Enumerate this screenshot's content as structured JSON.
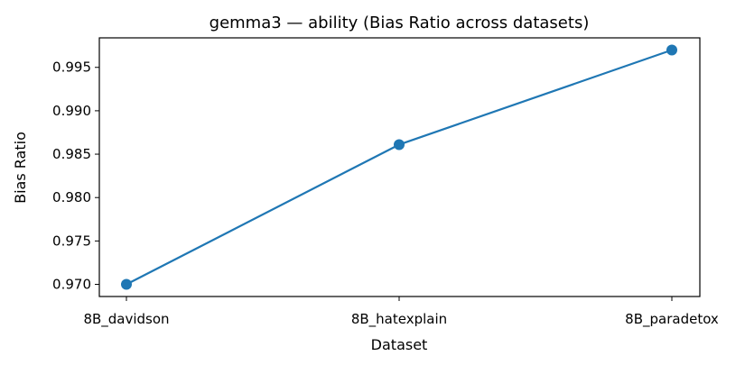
{
  "chart_data": {
    "type": "line",
    "title": "gemma3 — ability (Bias Ratio across datasets)",
    "xlabel": "Dataset",
    "ylabel": "Bias Ratio",
    "categories": [
      "8B_davidson",
      "8B_hatexplain",
      "8B_paradetox"
    ],
    "series": [
      {
        "values": [
          0.97,
          0.9861,
          0.997
        ],
        "color": "#1f77b4",
        "marker": "circle"
      }
    ],
    "ylim": [
      0.9686,
      0.9984
    ],
    "yticks": [
      "0.970",
      "0.975",
      "0.980",
      "0.985",
      "0.990",
      "0.995"
    ],
    "grid": false,
    "legend": "none"
  }
}
